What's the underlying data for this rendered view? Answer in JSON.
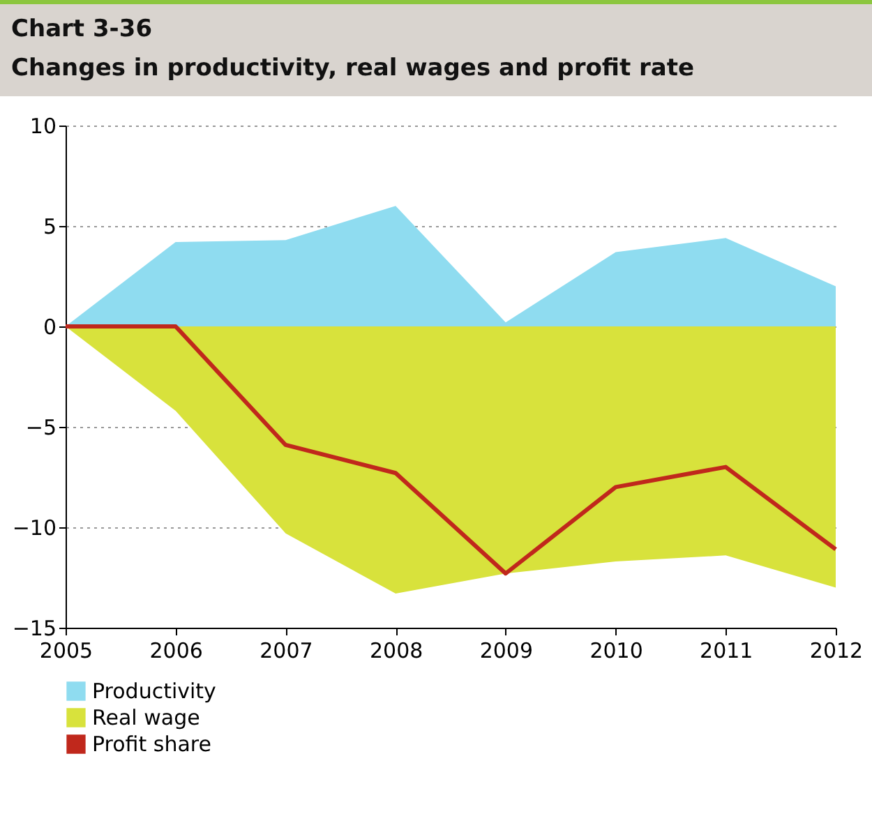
{
  "chart_data": {
    "type": "area",
    "title": "Chart 3-36",
    "subtitle": "Changes in productivity, real wages and profit rate",
    "categories": [
      "2005",
      "2006",
      "2007",
      "2008",
      "2009",
      "2010",
      "2011",
      "2012"
    ],
    "series": [
      {
        "name": "Productivity",
        "color": "#8fdcf0",
        "values": [
          0,
          4.2,
          4.3,
          6.0,
          0.2,
          3.7,
          4.4,
          2.0
        ]
      },
      {
        "name": "Real wage",
        "color": "#d8e23c",
        "values": [
          0,
          -4.2,
          -10.3,
          -13.3,
          -12.3,
          -11.7,
          -11.4,
          -13.0
        ]
      },
      {
        "name": "Profit share",
        "type": "line",
        "color": "#c0281c",
        "values": [
          0,
          0,
          -5.9,
          -7.3,
          -12.3,
          -8.0,
          -7.0,
          -11.1
        ]
      }
    ],
    "ylim": [
      -15,
      10
    ],
    "yticks": [
      -15,
      -10,
      -5,
      0,
      5,
      10
    ],
    "grid": "y",
    "legend": "bottom left",
    "marker": "none"
  }
}
